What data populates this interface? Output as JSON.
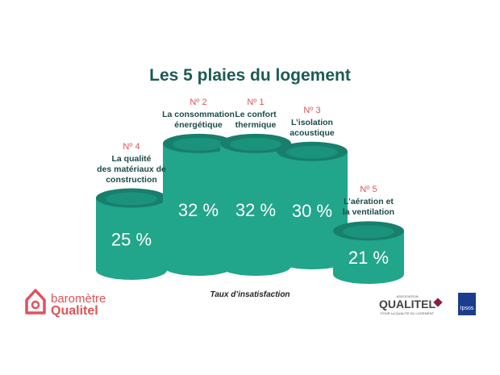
{
  "chart_data": {
    "type": "bar",
    "title": "Les 5 plaies du logement",
    "ranks": [
      "Nº 4",
      "Nº 2",
      "Nº 1",
      "Nº 3",
      "Nº 5"
    ],
    "categories": [
      "La qualité\ndes matériaux de\nconstruction",
      "La consommation\nénergétique",
      "Le confort\nthermique",
      "L’isolation\nacoustique",
      "L’aération et\nla ventilation"
    ],
    "values": [
      25,
      32,
      32,
      30,
      21
    ],
    "value_labels": [
      "25 %",
      "32 %",
      "32 %",
      "30 %",
      "21 %"
    ],
    "color": "#21a58b",
    "ylim": [
      15,
      34
    ],
    "x_label": "Taux d’insatisfaction"
  },
  "logos": {
    "barometre": "baromètre",
    "qualitel": "Qualitel",
    "association": "ASSOCIATION",
    "qualitel_assoc": "QUALITEL",
    "tagline": "POUR LA QUALITÉ DU LOGEMENT",
    "ipsos": "Ipsos"
  }
}
